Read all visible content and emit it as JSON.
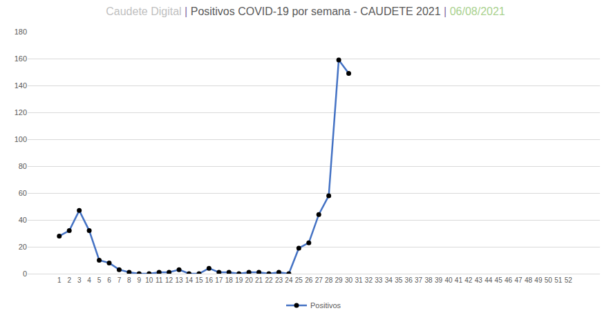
{
  "chart_data": {
    "type": "line",
    "title": "Caudete Digital | Positivos COVID-19 por semana - CAUDETE 2021 | 06/08/2021",
    "categories": [
      "1",
      "2",
      "3",
      "4",
      "5",
      "6",
      "7",
      "8",
      "9",
      "10",
      "11",
      "12",
      "13",
      "14",
      "15",
      "16",
      "17",
      "18",
      "19",
      "20",
      "21",
      "22",
      "23",
      "24",
      "25",
      "26",
      "27",
      "28",
      "29",
      "30",
      "31",
      "32",
      "33",
      "34",
      "35",
      "36",
      "37",
      "38",
      "39",
      "40",
      "41",
      "42",
      "43",
      "44",
      "45",
      "46",
      "47",
      "48",
      "49",
      "50",
      "51",
      "52"
    ],
    "series": [
      {
        "name": "Positivos",
        "color": "#4472c4",
        "marker": "circle",
        "values": [
          28,
          32,
          47,
          32,
          10,
          8,
          3,
          1,
          0,
          0,
          1,
          1,
          3,
          0,
          0,
          4,
          1,
          1,
          0,
          1,
          1,
          0,
          1,
          0,
          19,
          23,
          44,
          58,
          159,
          149,
          null,
          null,
          null,
          null,
          null,
          null,
          null,
          null,
          null,
          null,
          null,
          null,
          null,
          null,
          null,
          null,
          null,
          null,
          null,
          null,
          null,
          null
        ]
      }
    ],
    "ylim": [
      0,
      180
    ],
    "yticks": [
      0,
      20,
      40,
      60,
      80,
      100,
      120,
      140,
      160,
      180
    ],
    "grid": true,
    "legend": "bottom"
  }
}
